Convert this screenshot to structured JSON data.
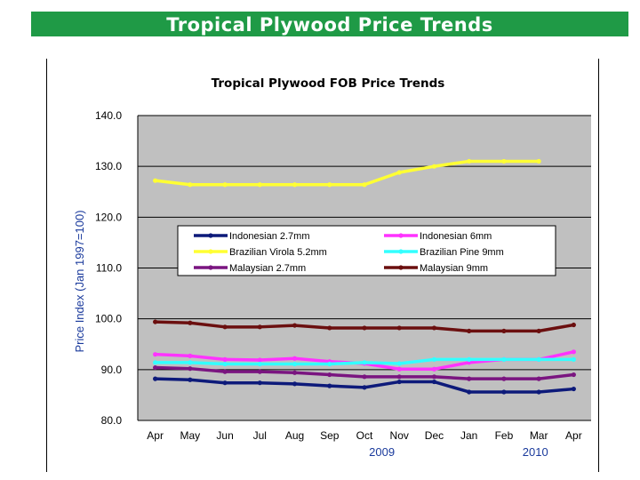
{
  "banner": {
    "title": "Tropical Plywood Price Trends",
    "color": "#1f9a46"
  },
  "chart_data": {
    "type": "line",
    "title": "Tropical Plywood FOB Price Trends",
    "ylabel": "Price Index (Jan 1997=100)",
    "xlabel": "",
    "categories": [
      "Apr",
      "May",
      "Jun",
      "Jul",
      "Aug",
      "Sep",
      "Oct",
      "Nov",
      "Dec",
      "Jan",
      "Feb",
      "Mar",
      "Apr"
    ],
    "year_labels": [
      {
        "label": "2009",
        "category_index": 6.5
      },
      {
        "label": "2010",
        "category_index": 10.9
      }
    ],
    "ylim": [
      80,
      140
    ],
    "yticks": [
      "80.0",
      "90.0",
      "100.0",
      "110.0",
      "120.0",
      "130.0",
      "140.0"
    ],
    "ytick_values": [
      80,
      90,
      100,
      110,
      120,
      130,
      140
    ],
    "grid": true,
    "plot_background": "#c0c0c0",
    "legend_position": "inside-middle",
    "series": [
      {
        "name": "Indonesian 2.7mm",
        "color": "#0d1a7a",
        "values": [
          88.2,
          88.0,
          87.4,
          87.4,
          87.2,
          86.8,
          86.5,
          87.6,
          87.6,
          85.6,
          85.6,
          85.6,
          86.2
        ]
      },
      {
        "name": "Indonesian 6mm",
        "color": "#ff33ff",
        "values": [
          93.0,
          92.7,
          92.0,
          91.9,
          92.2,
          91.6,
          91.2,
          90.1,
          90.1,
          91.4,
          92.0,
          92.0,
          93.5
        ]
      },
      {
        "name": "Brazilian Virola 5.2mm",
        "color": "#ffff33",
        "values": [
          127.2,
          126.4,
          126.4,
          126.4,
          126.4,
          126.4,
          126.4,
          128.8,
          130.0,
          131.0,
          131.0,
          131.0,
          null
        ]
      },
      {
        "name": "Brazilian Pine 9mm",
        "color": "#33ffff",
        "values": [
          91.4,
          91.4,
          91.1,
          91.1,
          91.1,
          91.1,
          91.4,
          91.2,
          92.0,
          92.0,
          92.0,
          92.0,
          92.0
        ]
      },
      {
        "name": "Malaysian 2.7mm",
        "color": "#7a1580",
        "values": [
          90.4,
          90.2,
          89.6,
          89.6,
          89.4,
          89.0,
          88.6,
          88.6,
          88.6,
          88.2,
          88.2,
          88.2,
          89.0
        ]
      },
      {
        "name": "Malaysian 9mm",
        "color": "#6b0f0f",
        "values": [
          99.4,
          99.2,
          98.4,
          98.4,
          98.7,
          98.2,
          98.2,
          98.2,
          98.2,
          97.6,
          97.6,
          97.6,
          98.8
        ]
      }
    ]
  }
}
